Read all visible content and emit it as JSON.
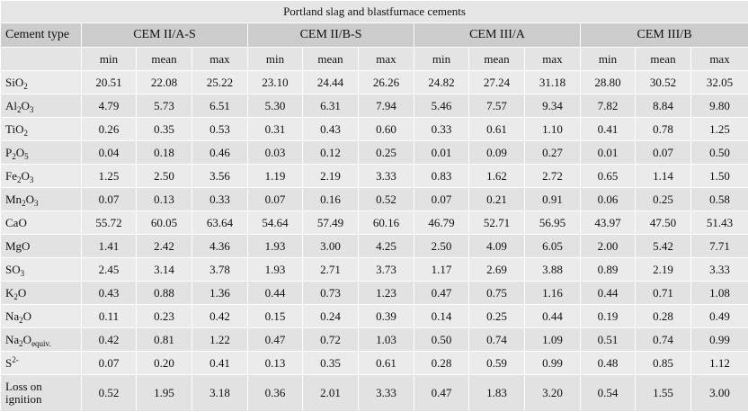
{
  "table": {
    "title": "Portland slag and blastfurnace cements",
    "first_column_header": "Cement type",
    "groups": [
      "CEM II/A-S",
      "CEM II/B-S",
      "CEM III/A",
      "CEM III/B"
    ],
    "stats": [
      "min",
      "mean",
      "max"
    ],
    "rows": [
      {
        "label_parts": [
          "SiO",
          "2",
          ""
        ],
        "values": [
          "20.51",
          "22.08",
          "25.22",
          "23.10",
          "24.44",
          "26.26",
          "24.82",
          "27.24",
          "31.18",
          "28.80",
          "30.52",
          "32.05"
        ]
      },
      {
        "label_parts": [
          "Al",
          "2",
          "O",
          "3"
        ],
        "values": [
          "4.79",
          "5.73",
          "6.51",
          "5.30",
          "6.31",
          "7.94",
          "5.46",
          "7.57",
          "9.34",
          "7.82",
          "8.84",
          "9.80"
        ]
      },
      {
        "label_parts": [
          "TiO",
          "2",
          ""
        ],
        "values": [
          "0.26",
          "0.35",
          "0.53",
          "0.31",
          "0.43",
          "0.60",
          "0.33",
          "0.61",
          "1.10",
          "0.41",
          "0.78",
          "1.25"
        ]
      },
      {
        "label_parts": [
          "P",
          "2",
          "O",
          "5"
        ],
        "values": [
          "0.04",
          "0.18",
          "0.46",
          "0.03",
          "0.12",
          "0.25",
          "0.01",
          "0.09",
          "0.27",
          "0.01",
          "0.07",
          "0.50"
        ]
      },
      {
        "label_parts": [
          "Fe",
          "2",
          "O",
          "3"
        ],
        "values": [
          "1.25",
          "2.50",
          "3.56",
          "1.19",
          "2.19",
          "3.33",
          "0.83",
          "1.62",
          "2.72",
          "0.65",
          "1.14",
          "1.50"
        ]
      },
      {
        "label_parts": [
          "Mn",
          "2",
          "O",
          "3"
        ],
        "values": [
          "0.07",
          "0.13",
          "0.33",
          "0.07",
          "0.16",
          "0.52",
          "0.07",
          "0.21",
          "0.91",
          "0.06",
          "0.25",
          "0.58"
        ]
      },
      {
        "label_parts": [
          "CaO"
        ],
        "values": [
          "55.72",
          "60.05",
          "63.64",
          "54.64",
          "57.49",
          "60.16",
          "46.79",
          "52.71",
          "56.95",
          "43.97",
          "47.50",
          "51.43"
        ]
      },
      {
        "label_parts": [
          "MgO"
        ],
        "values": [
          "1.41",
          "2.42",
          "4.36",
          "1.93",
          "3.00",
          "4.25",
          "2.50",
          "4.09",
          "6.05",
          "2.00",
          "5.42",
          "7.71"
        ]
      },
      {
        "label_parts": [
          "SO",
          "3",
          ""
        ],
        "values": [
          "2.45",
          "3.14",
          "3.78",
          "1.93",
          "2.71",
          "3.73",
          "1.17",
          "2.69",
          "3.88",
          "0.89",
          "2.19",
          "3.33"
        ]
      },
      {
        "label_parts": [
          "K",
          "2",
          "O"
        ],
        "values": [
          "0.43",
          "0.88",
          "1.36",
          "0.44",
          "0.73",
          "1.23",
          "0.47",
          "0.75",
          "1.16",
          "0.44",
          "0.71",
          "1.08"
        ]
      },
      {
        "label_parts": [
          "Na",
          "2",
          "O"
        ],
        "values": [
          "0.11",
          "0.23",
          "0.42",
          "0.15",
          "0.24",
          "0.39",
          "0.14",
          "0.25",
          "0.44",
          "0.19",
          "0.28",
          "0.49"
        ]
      },
      {
        "label_parts": [
          "Na",
          "2",
          "O",
          "equiv."
        ],
        "values": [
          "0.42",
          "0.81",
          "1.22",
          "0.47",
          "0.72",
          "1.03",
          "0.50",
          "0.74",
          "1.09",
          "0.51",
          "0.74",
          "0.99"
        ]
      },
      {
        "label_sup": [
          "S",
          "2-"
        ],
        "values": [
          "0.07",
          "0.20",
          "0.41",
          "0.13",
          "0.35",
          "0.61",
          "0.28",
          "0.59",
          "0.99",
          "0.48",
          "0.85",
          "1.12"
        ]
      },
      {
        "label_parts": [
          "Loss on ignition"
        ],
        "values": [
          "0.52",
          "1.95",
          "3.18",
          "0.36",
          "2.01",
          "3.33",
          "0.47",
          "1.83",
          "3.20",
          "0.54",
          "1.55",
          "3.00"
        ],
        "tall": true
      }
    ]
  }
}
